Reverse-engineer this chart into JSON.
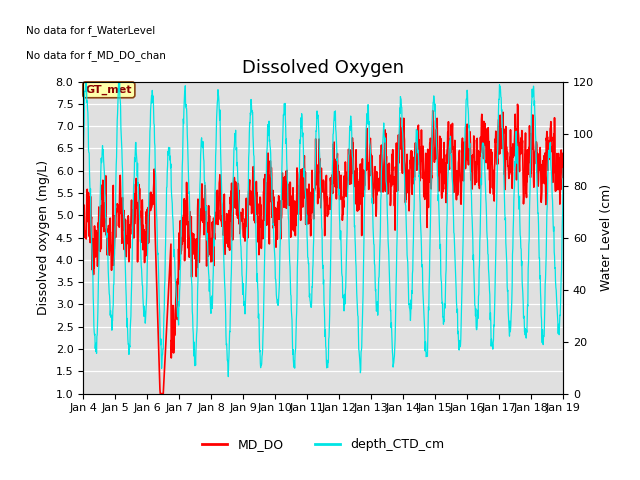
{
  "title": "Dissolved Oxygen",
  "annotation_line1": "No data for f_WaterLevel",
  "annotation_line2": "No data for f_MD_DO_chan",
  "box_label": "GT_met",
  "xlabel_dates": [
    "Jan 4",
    "Jan 5",
    "Jan 6",
    "Jan 7",
    "Jan 8",
    "Jan 9",
    "Jan 10",
    "Jan 11",
    "Jan 12",
    "Jan 13",
    "Jan 14",
    "Jan 15",
    "Jan 16",
    "Jan 17",
    "Jan 18",
    "Jan 19"
  ],
  "ylabel_left": "Dissolved oxygen (mg/L)",
  "ylabel_right": "Water Level (cm)",
  "ylim_left": [
    1.0,
    8.0
  ],
  "ylim_right": [
    0,
    120
  ],
  "yticks_left": [
    1.0,
    1.5,
    2.0,
    2.5,
    3.0,
    3.5,
    4.0,
    4.5,
    5.0,
    5.5,
    6.0,
    6.5,
    7.0,
    7.5,
    8.0
  ],
  "yticks_right": [
    0,
    20,
    40,
    60,
    80,
    100,
    120
  ],
  "legend_md_do": "MD_DO",
  "legend_depth": "depth_CTD_cm",
  "color_md_do": "#ff0000",
  "color_depth": "#00e5e5",
  "bg_color": "#e0e0e0",
  "title_fontsize": 13,
  "label_fontsize": 9,
  "tick_fontsize": 8
}
